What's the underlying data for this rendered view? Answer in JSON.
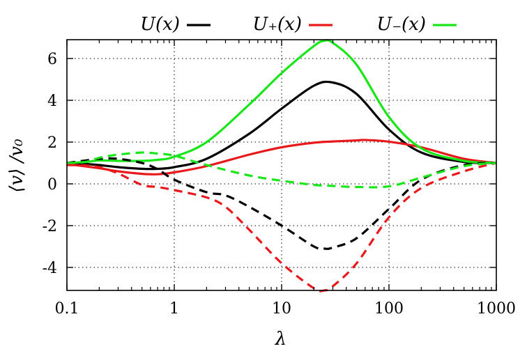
{
  "chart_data": {
    "type": "line",
    "title": "",
    "xlabel": "λ",
    "ylabel": "⟨v⟩ /v₀",
    "xscale": "log",
    "xlim": [
      0.1,
      1000
    ],
    "ylim": [
      -5.1,
      6.9
    ],
    "grid": true,
    "legend_position": "top",
    "x_ticks": [
      {
        "value": 0.1,
        "label": "0.1"
      },
      {
        "value": 1,
        "label": "1"
      },
      {
        "value": 10,
        "label": "10"
      },
      {
        "value": 100,
        "label": "100"
      },
      {
        "value": 1000,
        "label": "1000"
      }
    ],
    "y_ticks": [
      {
        "value": -4,
        "label": "-4"
      },
      {
        "value": -2,
        "label": "-2"
      },
      {
        "value": 0,
        "label": "0"
      },
      {
        "value": 2,
        "label": "2"
      },
      {
        "value": 4,
        "label": "4"
      },
      {
        "value": 6,
        "label": "6"
      }
    ],
    "legend": [
      {
        "label": "U(x)",
        "color": "#000000"
      },
      {
        "label": "U₊(x)",
        "color": "#e8191c"
      },
      {
        "label": "U₋(x)",
        "color": "#19e619"
      }
    ],
    "series": [
      {
        "name": "U(x)",
        "color": "#000000",
        "dash": false,
        "x": [
          0.1,
          0.15,
          0.2,
          0.3,
          0.5,
          0.7,
          1,
          2,
          5,
          10,
          20,
          30,
          50,
          100,
          200,
          500,
          1000
        ],
        "y": [
          1.0,
          0.95,
          0.9,
          0.8,
          0.72,
          0.72,
          0.8,
          1.2,
          2.4,
          3.6,
          4.7,
          4.85,
          4.3,
          2.6,
          1.5,
          1.05,
          1.0
        ]
      },
      {
        "name": "U₊(x)",
        "color": "#e8191c",
        "dash": false,
        "x": [
          0.1,
          0.2,
          0.3,
          0.5,
          0.7,
          1,
          2,
          5,
          10,
          20,
          30,
          50,
          60,
          100,
          200,
          500,
          1000
        ],
        "y": [
          0.95,
          0.75,
          0.6,
          0.48,
          0.46,
          0.55,
          0.85,
          1.4,
          1.75,
          1.97,
          2.03,
          2.08,
          2.1,
          2.02,
          1.75,
          1.2,
          1.0
        ]
      },
      {
        "name": "U₋(x)",
        "color": "#19e619",
        "dash": false,
        "x": [
          0.1,
          0.15,
          0.2,
          0.3,
          0.5,
          0.7,
          1,
          2,
          5,
          10,
          20,
          25,
          30,
          50,
          100,
          200,
          500,
          1000
        ],
        "y": [
          1.0,
          1.05,
          1.12,
          1.1,
          1.1,
          1.15,
          1.3,
          2.0,
          3.8,
          5.3,
          6.6,
          6.85,
          6.75,
          5.7,
          3.2,
          1.7,
          1.1,
          1.0
        ]
      },
      {
        "name": "",
        "color": "#000000",
        "dash": true,
        "x": [
          0.1,
          0.15,
          0.2,
          0.3,
          0.5,
          0.7,
          1,
          2,
          3,
          5,
          10,
          20,
          25,
          30,
          50,
          100,
          200,
          500,
          1000
        ],
        "y": [
          1.0,
          1.12,
          1.2,
          1.2,
          1.0,
          0.7,
          0.2,
          -0.4,
          -0.55,
          -1.1,
          -2.0,
          -3.0,
          -3.1,
          -3.05,
          -2.6,
          -1.2,
          0.2,
          0.9,
          1.0
        ]
      },
      {
        "name": "",
        "color": "#e8191c",
        "dash": true,
        "x": [
          0.1,
          0.15,
          0.2,
          0.3,
          0.5,
          0.7,
          1,
          2,
          3,
          5,
          10,
          20,
          25,
          30,
          50,
          100,
          200,
          500,
          1000
        ],
        "y": [
          0.9,
          0.88,
          0.8,
          0.5,
          -0.05,
          -0.15,
          -0.3,
          -0.65,
          -1.1,
          -2.2,
          -3.8,
          -5.0,
          -5.1,
          -4.9,
          -3.8,
          -1.6,
          -0.2,
          0.6,
          1.0
        ]
      },
      {
        "name": "",
        "color": "#19e619",
        "dash": true,
        "x": [
          0.1,
          0.15,
          0.2,
          0.3,
          0.5,
          0.7,
          1,
          2,
          5,
          10,
          20,
          30,
          50,
          100,
          200,
          500,
          1000
        ],
        "y": [
          1.0,
          1.05,
          1.25,
          1.4,
          1.5,
          1.45,
          1.35,
          0.9,
          0.4,
          0.15,
          -0.05,
          -0.1,
          -0.15,
          -0.12,
          0.3,
          0.85,
          1.0
        ]
      }
    ]
  }
}
